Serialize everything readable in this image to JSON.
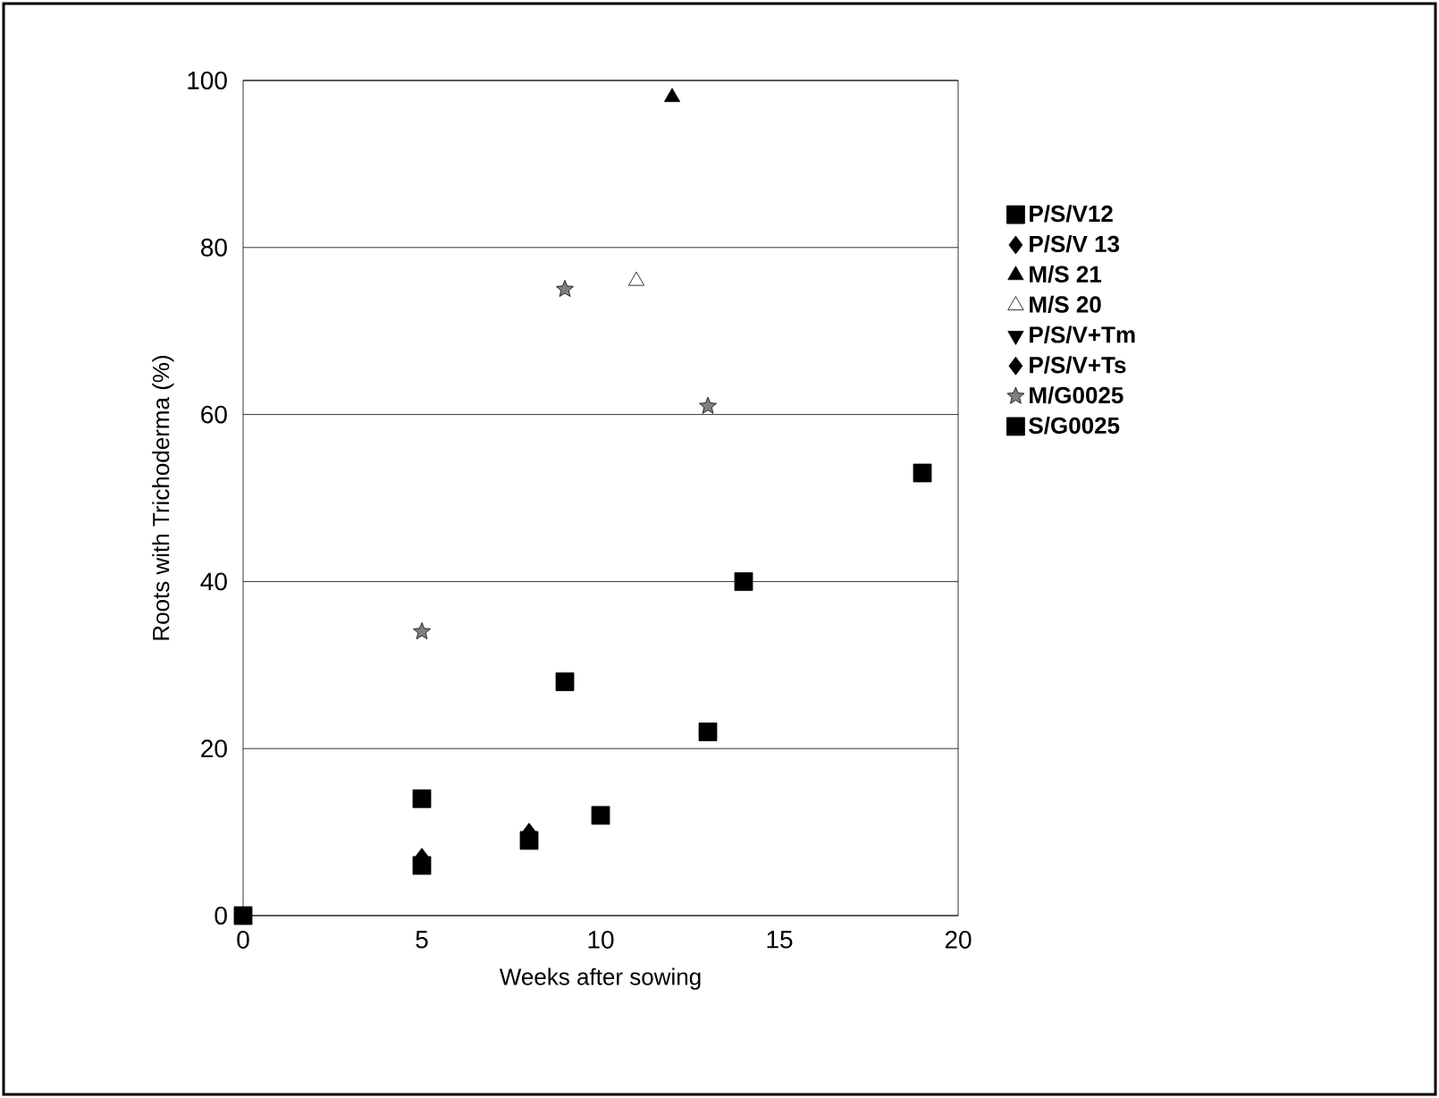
{
  "chart_data": {
    "type": "scatter",
    "xlabel": "Weeks after sowing",
    "ylabel": "Roots with Trichoderma (%)",
    "xlim": [
      0,
      20
    ],
    "ylim": [
      0,
      100
    ],
    "xticks": [
      0,
      5,
      10,
      15,
      20
    ],
    "yticks": [
      0,
      20,
      40,
      60,
      80,
      100
    ],
    "grid": "y",
    "legend": "right",
    "series": [
      {
        "name": "P/S/V12",
        "color": "#000000",
        "marker": "square",
        "x": [
          0,
          5,
          8,
          10
        ],
        "values": [
          0,
          6,
          9,
          12
        ]
      },
      {
        "name": "P/S/V 13",
        "color": "#000000",
        "marker": "diamond",
        "x": [
          5,
          8
        ],
        "values": [
          7,
          10
        ]
      },
      {
        "name": "M/S 21",
        "color": "#000000",
        "marker": "triangle",
        "x": [
          12
        ],
        "values": [
          98
        ]
      },
      {
        "name": "M/S 20",
        "color": "#ffffff",
        "marker": "triangle",
        "x": [
          11
        ],
        "values": [
          76
        ]
      },
      {
        "name": "P/S/V+Tm",
        "color": "#000000",
        "marker": "triangle down"
      },
      {
        "name": "P/S/V+Ts",
        "color": "#000000",
        "marker": "diamond"
      },
      {
        "name": "M/G0025",
        "color": "#808080",
        "marker": "star",
        "x": [
          5,
          9,
          13
        ],
        "values": [
          34,
          75,
          61
        ]
      },
      {
        "name": "S/G0025",
        "color": "#000000",
        "marker": "square",
        "x": [
          5,
          9,
          13,
          14,
          19
        ],
        "values": [
          14,
          28,
          22,
          40,
          53
        ]
      }
    ]
  }
}
